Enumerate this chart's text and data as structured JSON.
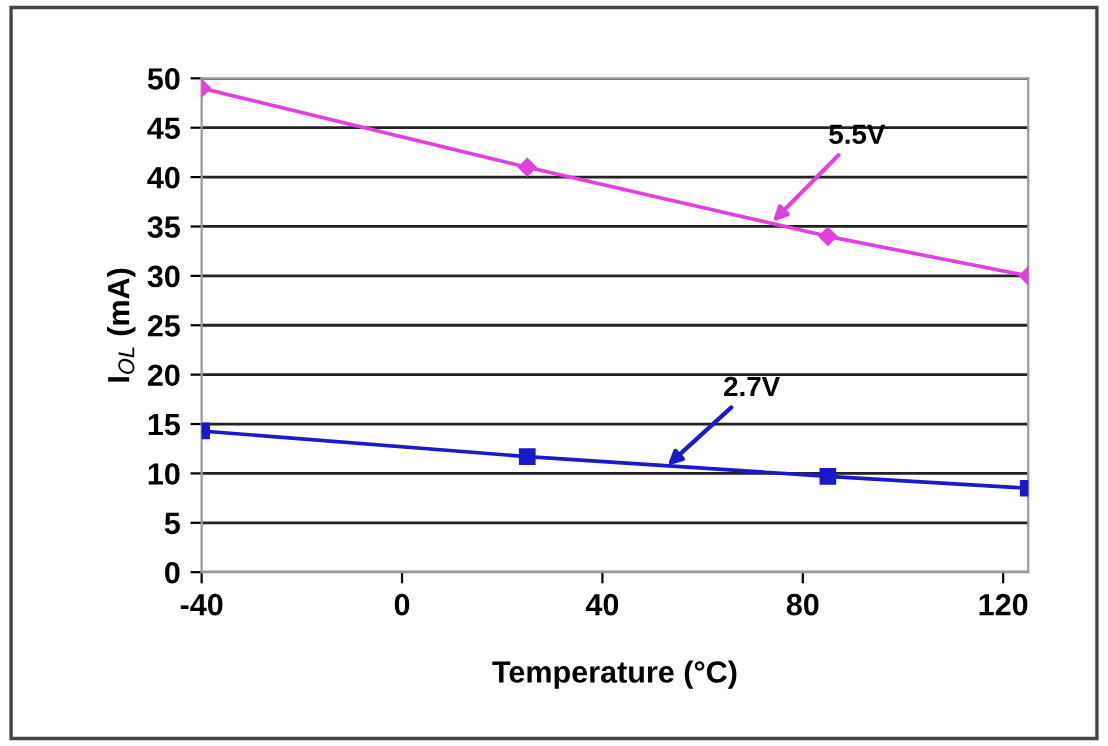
{
  "chart_data": {
    "type": "line",
    "xlabel": "Temperature (°C)",
    "ylabel": "I$_{OL}$ (mA)",
    "xlim": [
      -40,
      125
    ],
    "xticks": [
      -40,
      0,
      40,
      80,
      120
    ],
    "ylim": [
      0,
      50
    ],
    "yticks": [
      0,
      5,
      10,
      15,
      20,
      25,
      30,
      35,
      40,
      45,
      50
    ],
    "grid": "y",
    "x": [
      -40,
      25,
      85,
      125
    ],
    "series": [
      {
        "color": "#e040e0",
        "values": [
          49,
          41,
          34,
          30
        ],
        "marker": "diamond"
      },
      {
        "color": "#1a1ac8",
        "values": [
          14.3,
          11.7,
          9.7,
          8.5
        ],
        "marker": "square"
      }
    ],
    "annotations": [
      {
        "text": "5.5V",
        "x": 74,
        "y": 35.5
      },
      {
        "text": "2.7V",
        "x": 53,
        "y": 10.8
      }
    ]
  }
}
